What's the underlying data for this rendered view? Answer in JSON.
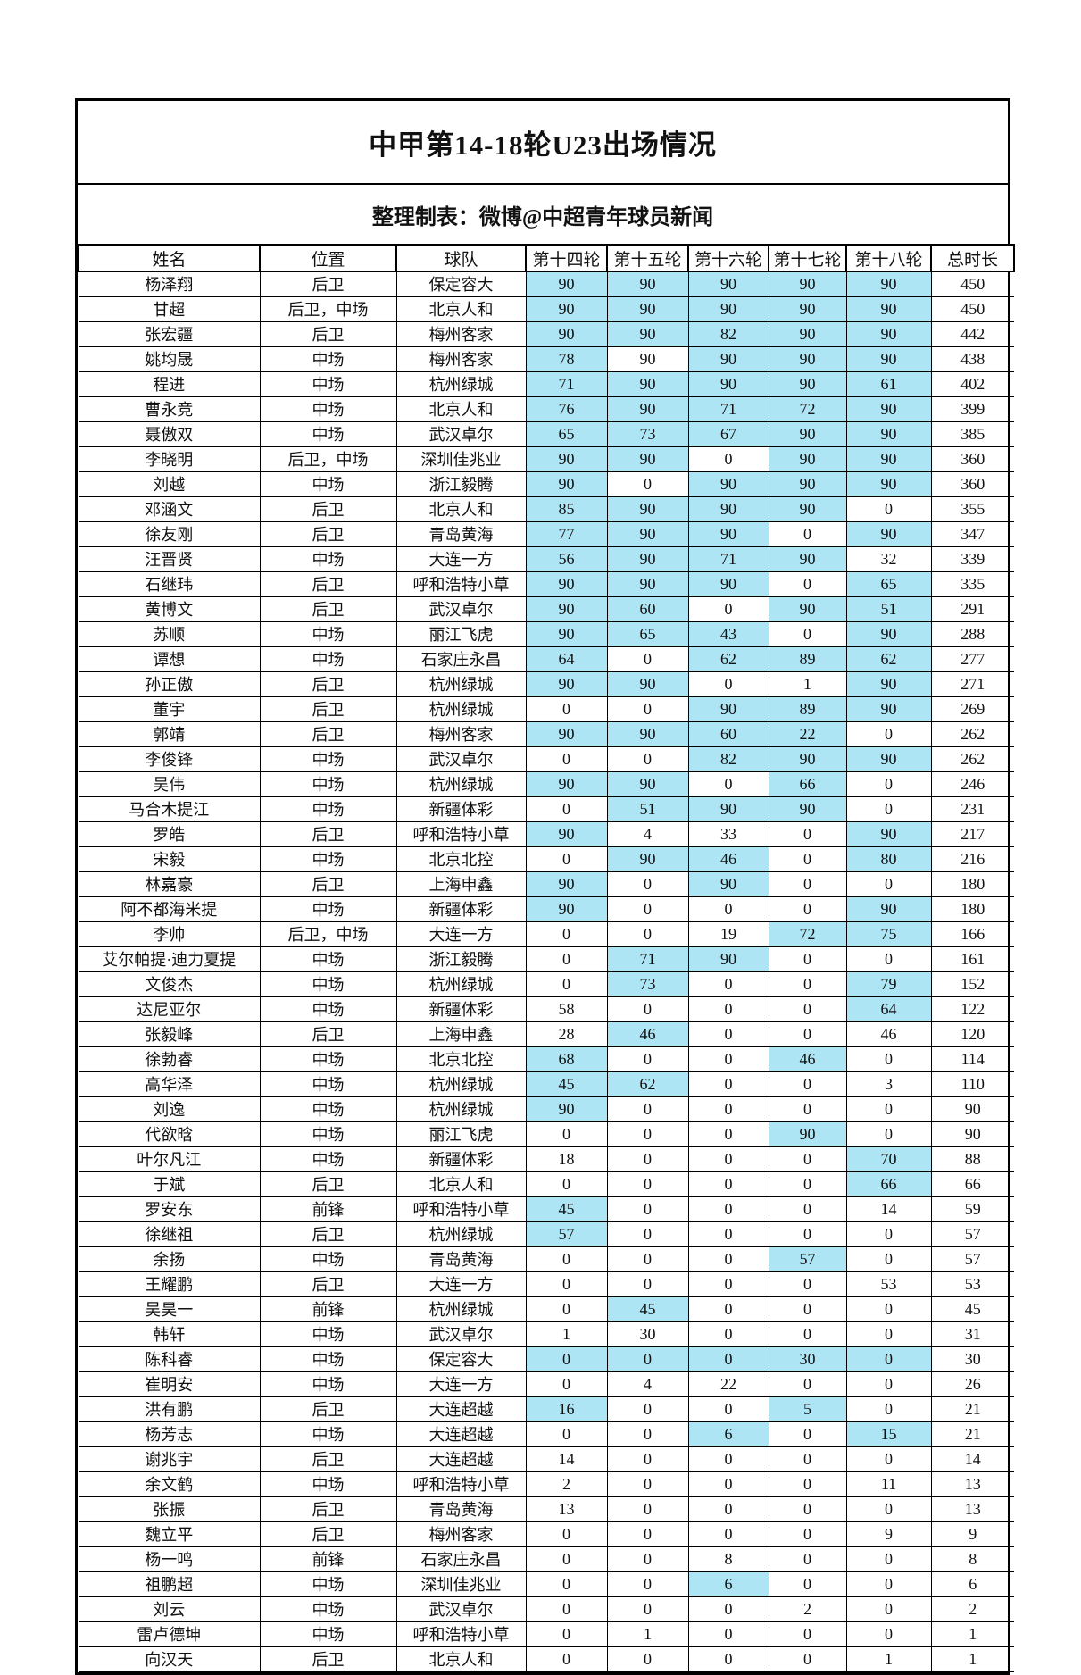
{
  "title": "中甲第14-18轮U23出场情况",
  "subtitle": "整理制表：微博@中超青年球员新闻",
  "highlight_color": "#AEE5F5",
  "table": {
    "columns": [
      "姓名",
      "位置",
      "球队",
      "第十四轮",
      "第十五轮",
      "第十六轮",
      "第十七轮",
      "第十八轮",
      "总时长"
    ],
    "rows": [
      {
        "name": "杨泽翔",
        "position": "后卫",
        "team": "保定容大",
        "rounds": [
          90,
          90,
          90,
          90,
          90
        ],
        "highlight": [
          true,
          true,
          true,
          true,
          true
        ],
        "total": 450
      },
      {
        "name": "甘超",
        "position": "后卫，中场",
        "team": "北京人和",
        "rounds": [
          90,
          90,
          90,
          90,
          90
        ],
        "highlight": [
          true,
          true,
          true,
          true,
          true
        ],
        "total": 450
      },
      {
        "name": "张宏疆",
        "position": "后卫",
        "team": "梅州客家",
        "rounds": [
          90,
          90,
          82,
          90,
          90
        ],
        "highlight": [
          true,
          true,
          true,
          true,
          true
        ],
        "total": 442
      },
      {
        "name": "姚均晟",
        "position": "中场",
        "team": "梅州客家",
        "rounds": [
          78,
          90,
          90,
          90,
          90
        ],
        "highlight": [
          true,
          false,
          true,
          true,
          true
        ],
        "total": 438
      },
      {
        "name": "程进",
        "position": "中场",
        "team": "杭州绿城",
        "rounds": [
          71,
          90,
          90,
          90,
          61
        ],
        "highlight": [
          true,
          true,
          true,
          true,
          true
        ],
        "total": 402
      },
      {
        "name": "曹永竞",
        "position": "中场",
        "team": "北京人和",
        "rounds": [
          76,
          90,
          71,
          72,
          90
        ],
        "highlight": [
          true,
          true,
          true,
          true,
          true
        ],
        "total": 399
      },
      {
        "name": "聂傲双",
        "position": "中场",
        "team": "武汉卓尔",
        "rounds": [
          65,
          73,
          67,
          90,
          90
        ],
        "highlight": [
          true,
          true,
          true,
          true,
          true
        ],
        "total": 385
      },
      {
        "name": "李晓明",
        "position": "后卫，中场",
        "team": "深圳佳兆业",
        "rounds": [
          90,
          90,
          0,
          90,
          90
        ],
        "highlight": [
          true,
          true,
          false,
          true,
          true
        ],
        "total": 360
      },
      {
        "name": "刘越",
        "position": "中场",
        "team": "浙江毅腾",
        "rounds": [
          90,
          0,
          90,
          90,
          90
        ],
        "highlight": [
          true,
          false,
          true,
          true,
          true
        ],
        "total": 360
      },
      {
        "name": "邓涵文",
        "position": "后卫",
        "team": "北京人和",
        "rounds": [
          85,
          90,
          90,
          90,
          0
        ],
        "highlight": [
          true,
          true,
          true,
          true,
          false
        ],
        "total": 355
      },
      {
        "name": "徐友刚",
        "position": "后卫",
        "team": "青岛黄海",
        "rounds": [
          77,
          90,
          90,
          0,
          90
        ],
        "highlight": [
          true,
          true,
          true,
          false,
          true
        ],
        "total": 347
      },
      {
        "name": "汪晋贤",
        "position": "中场",
        "team": "大连一方",
        "rounds": [
          56,
          90,
          71,
          90,
          32
        ],
        "highlight": [
          true,
          true,
          true,
          true,
          false
        ],
        "total": 339
      },
      {
        "name": "石继玮",
        "position": "后卫",
        "team": "呼和浩特小草",
        "rounds": [
          90,
          90,
          90,
          0,
          65
        ],
        "highlight": [
          true,
          true,
          true,
          false,
          true
        ],
        "total": 335
      },
      {
        "name": "黄博文",
        "position": "后卫",
        "team": "武汉卓尔",
        "rounds": [
          90,
          60,
          0,
          90,
          51
        ],
        "highlight": [
          true,
          true,
          false,
          true,
          true
        ],
        "total": 291
      },
      {
        "name": "苏顺",
        "position": "中场",
        "team": "丽江飞虎",
        "rounds": [
          90,
          65,
          43,
          0,
          90
        ],
        "highlight": [
          true,
          true,
          true,
          false,
          true
        ],
        "total": 288
      },
      {
        "name": "谭想",
        "position": "中场",
        "team": "石家庄永昌",
        "rounds": [
          64,
          0,
          62,
          89,
          62
        ],
        "highlight": [
          true,
          false,
          true,
          true,
          true
        ],
        "total": 277
      },
      {
        "name": "孙正傲",
        "position": "后卫",
        "team": "杭州绿城",
        "rounds": [
          90,
          90,
          0,
          1,
          90
        ],
        "highlight": [
          true,
          true,
          false,
          false,
          true
        ],
        "total": 271
      },
      {
        "name": "董宇",
        "position": "后卫",
        "team": "杭州绿城",
        "rounds": [
          0,
          0,
          90,
          89,
          90
        ],
        "highlight": [
          false,
          false,
          true,
          true,
          true
        ],
        "total": 269
      },
      {
        "name": "郭靖",
        "position": "后卫",
        "team": "梅州客家",
        "rounds": [
          90,
          90,
          60,
          22,
          0
        ],
        "highlight": [
          true,
          true,
          true,
          true,
          false
        ],
        "total": 262
      },
      {
        "name": "李俊锋",
        "position": "中场",
        "team": "武汉卓尔",
        "rounds": [
          0,
          0,
          82,
          90,
          90
        ],
        "highlight": [
          false,
          false,
          true,
          true,
          true
        ],
        "total": 262
      },
      {
        "name": "吴伟",
        "position": "中场",
        "team": "杭州绿城",
        "rounds": [
          90,
          90,
          0,
          66,
          0
        ],
        "highlight": [
          true,
          true,
          false,
          true,
          false
        ],
        "total": 246
      },
      {
        "name": "马合木提江",
        "position": "中场",
        "team": "新疆体彩",
        "rounds": [
          0,
          51,
          90,
          90,
          0
        ],
        "highlight": [
          false,
          true,
          true,
          true,
          false
        ],
        "total": 231
      },
      {
        "name": "罗皓",
        "position": "后卫",
        "team": "呼和浩特小草",
        "rounds": [
          90,
          4,
          33,
          0,
          90
        ],
        "highlight": [
          true,
          false,
          false,
          false,
          true
        ],
        "total": 217
      },
      {
        "name": "宋毅",
        "position": "中场",
        "team": "北京北控",
        "rounds": [
          0,
          90,
          46,
          0,
          80
        ],
        "highlight": [
          false,
          true,
          true,
          false,
          true
        ],
        "total": 216
      },
      {
        "name": "林嘉豪",
        "position": "后卫",
        "team": "上海申鑫",
        "rounds": [
          90,
          0,
          90,
          0,
          0
        ],
        "highlight": [
          true,
          false,
          true,
          false,
          false
        ],
        "total": 180
      },
      {
        "name": "阿不都海米提",
        "position": "中场",
        "team": "新疆体彩",
        "rounds": [
          90,
          0,
          0,
          0,
          90
        ],
        "highlight": [
          true,
          false,
          false,
          false,
          true
        ],
        "total": 180
      },
      {
        "name": "李帅",
        "position": "后卫，中场",
        "team": "大连一方",
        "rounds": [
          0,
          0,
          19,
          72,
          75
        ],
        "highlight": [
          false,
          false,
          false,
          true,
          true
        ],
        "total": 166
      },
      {
        "name": "艾尔帕提·迪力夏提",
        "position": "中场",
        "team": "浙江毅腾",
        "rounds": [
          0,
          71,
          90,
          0,
          0
        ],
        "highlight": [
          false,
          true,
          true,
          false,
          false
        ],
        "total": 161
      },
      {
        "name": "文俊杰",
        "position": "中场",
        "team": "杭州绿城",
        "rounds": [
          0,
          73,
          0,
          0,
          79
        ],
        "highlight": [
          false,
          true,
          false,
          false,
          true
        ],
        "total": 152
      },
      {
        "name": "达尼亚尔",
        "position": "中场",
        "team": "新疆体彩",
        "rounds": [
          58,
          0,
          0,
          0,
          64
        ],
        "highlight": [
          false,
          false,
          false,
          false,
          true
        ],
        "total": 122
      },
      {
        "name": "张毅峰",
        "position": "后卫",
        "team": "上海申鑫",
        "rounds": [
          28,
          46,
          0,
          0,
          46
        ],
        "highlight": [
          false,
          true,
          false,
          false,
          false
        ],
        "total": 120
      },
      {
        "name": "徐勃睿",
        "position": "中场",
        "team": "北京北控",
        "rounds": [
          68,
          0,
          0,
          46,
          0
        ],
        "highlight": [
          true,
          false,
          false,
          true,
          false
        ],
        "total": 114
      },
      {
        "name": "高华泽",
        "position": "中场",
        "team": "杭州绿城",
        "rounds": [
          45,
          62,
          0,
          0,
          3
        ],
        "highlight": [
          true,
          true,
          false,
          false,
          false
        ],
        "total": 110
      },
      {
        "name": "刘逸",
        "position": "中场",
        "team": "杭州绿城",
        "rounds": [
          90,
          0,
          0,
          0,
          0
        ],
        "highlight": [
          true,
          false,
          false,
          false,
          false
        ],
        "total": 90
      },
      {
        "name": "代欲晗",
        "position": "中场",
        "team": "丽江飞虎",
        "rounds": [
          0,
          0,
          0,
          90,
          0
        ],
        "highlight": [
          false,
          false,
          false,
          true,
          false
        ],
        "total": 90
      },
      {
        "name": "叶尔凡江",
        "position": "中场",
        "team": "新疆体彩",
        "rounds": [
          18,
          0,
          0,
          0,
          70
        ],
        "highlight": [
          false,
          false,
          false,
          false,
          true
        ],
        "total": 88
      },
      {
        "name": "于斌",
        "position": "后卫",
        "team": "北京人和",
        "rounds": [
          0,
          0,
          0,
          0,
          66
        ],
        "highlight": [
          false,
          false,
          false,
          false,
          true
        ],
        "total": 66
      },
      {
        "name": "罗安东",
        "position": "前锋",
        "team": "呼和浩特小草",
        "rounds": [
          45,
          0,
          0,
          0,
          14
        ],
        "highlight": [
          true,
          false,
          false,
          false,
          false
        ],
        "total": 59
      },
      {
        "name": "徐继祖",
        "position": "后卫",
        "team": "杭州绿城",
        "rounds": [
          57,
          0,
          0,
          0,
          0
        ],
        "highlight": [
          true,
          false,
          false,
          false,
          false
        ],
        "total": 57
      },
      {
        "name": "余扬",
        "position": "中场",
        "team": "青岛黄海",
        "rounds": [
          0,
          0,
          0,
          57,
          0
        ],
        "highlight": [
          false,
          false,
          false,
          true,
          false
        ],
        "total": 57
      },
      {
        "name": "王耀鹏",
        "position": "后卫",
        "team": "大连一方",
        "rounds": [
          0,
          0,
          0,
          0,
          53
        ],
        "highlight": [
          false,
          false,
          false,
          false,
          false
        ],
        "total": 53
      },
      {
        "name": "吴昊一",
        "position": "前锋",
        "team": "杭州绿城",
        "rounds": [
          0,
          45,
          0,
          0,
          0
        ],
        "highlight": [
          false,
          true,
          false,
          false,
          false
        ],
        "total": 45
      },
      {
        "name": "韩轩",
        "position": "中场",
        "team": "武汉卓尔",
        "rounds": [
          1,
          30,
          0,
          0,
          0
        ],
        "highlight": [
          false,
          false,
          false,
          false,
          false
        ],
        "total": 31
      },
      {
        "name": "陈科睿",
        "position": "中场",
        "team": "保定容大",
        "rounds": [
          0,
          0,
          0,
          30,
          0
        ],
        "highlight": [
          true,
          true,
          true,
          true,
          true
        ],
        "total": 30
      },
      {
        "name": "崔明安",
        "position": "中场",
        "team": "大连一方",
        "rounds": [
          0,
          4,
          22,
          0,
          0
        ],
        "highlight": [
          false,
          false,
          false,
          false,
          false
        ],
        "total": 26
      },
      {
        "name": "洪有鹏",
        "position": "后卫",
        "team": "大连超越",
        "rounds": [
          16,
          0,
          0,
          5,
          0
        ],
        "highlight": [
          true,
          false,
          false,
          true,
          false
        ],
        "total": 21
      },
      {
        "name": "杨芳志",
        "position": "中场",
        "team": "大连超越",
        "rounds": [
          0,
          0,
          6,
          0,
          15
        ],
        "highlight": [
          false,
          false,
          true,
          false,
          true
        ],
        "total": 21
      },
      {
        "name": "谢兆宇",
        "position": "后卫",
        "team": "大连超越",
        "rounds": [
          14,
          0,
          0,
          0,
          0
        ],
        "highlight": [
          false,
          false,
          false,
          false,
          false
        ],
        "total": 14
      },
      {
        "name": "余文鹤",
        "position": "中场",
        "team": "呼和浩特小草",
        "rounds": [
          2,
          0,
          0,
          0,
          11
        ],
        "highlight": [
          false,
          false,
          false,
          false,
          false
        ],
        "total": 13
      },
      {
        "name": "张振",
        "position": "后卫",
        "team": "青岛黄海",
        "rounds": [
          13,
          0,
          0,
          0,
          0
        ],
        "highlight": [
          false,
          false,
          false,
          false,
          false
        ],
        "total": 13
      },
      {
        "name": "魏立平",
        "position": "后卫",
        "team": "梅州客家",
        "rounds": [
          0,
          0,
          0,
          0,
          9
        ],
        "highlight": [
          false,
          false,
          false,
          false,
          false
        ],
        "total": 9
      },
      {
        "name": "杨一鸣",
        "position": "前锋",
        "team": "石家庄永昌",
        "rounds": [
          0,
          0,
          8,
          0,
          0
        ],
        "highlight": [
          false,
          false,
          false,
          false,
          false
        ],
        "total": 8
      },
      {
        "name": "祖鹏超",
        "position": "中场",
        "team": "深圳佳兆业",
        "rounds": [
          0,
          0,
          6,
          0,
          0
        ],
        "highlight": [
          false,
          false,
          true,
          false,
          false
        ],
        "total": 6
      },
      {
        "name": "刘云",
        "position": "中场",
        "team": "武汉卓尔",
        "rounds": [
          0,
          0,
          0,
          2,
          0
        ],
        "highlight": [
          false,
          false,
          false,
          false,
          false
        ],
        "total": 2
      },
      {
        "name": "雷卢德坤",
        "position": "中场",
        "team": "呼和浩特小草",
        "rounds": [
          0,
          1,
          0,
          0,
          0
        ],
        "highlight": [
          false,
          false,
          false,
          false,
          false
        ],
        "total": 1
      },
      {
        "name": "向汉天",
        "position": "后卫",
        "team": "北京人和",
        "rounds": [
          0,
          0,
          0,
          0,
          1
        ],
        "highlight": [
          false,
          false,
          false,
          false,
          false
        ],
        "total": 1
      }
    ]
  }
}
